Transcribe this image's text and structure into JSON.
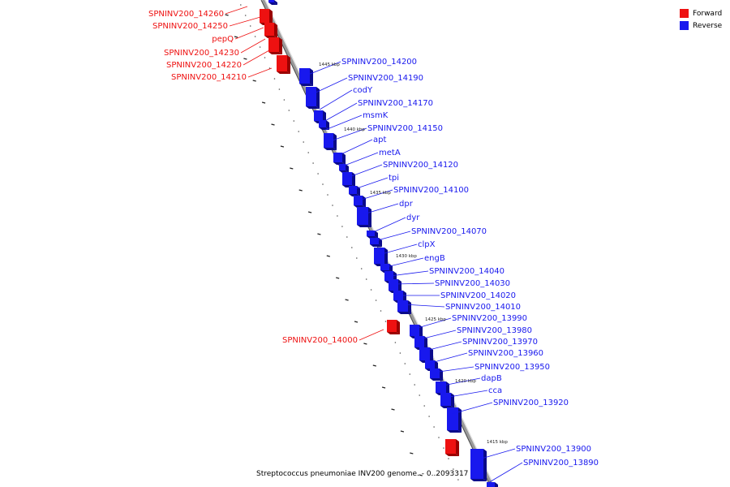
{
  "legend": {
    "forward_label": "Forward",
    "reverse_label": "Reverse",
    "forward_color": "#ee1111",
    "reverse_color": "#1818ee"
  },
  "caption": "Streptococcus pneumoniae INV200 genome. - 0..2093317",
  "ticks": [
    "1445 kbp",
    "1440 kbp",
    "1435 kbp",
    "1430 kbp",
    "1425 kbp",
    "1420 kbp",
    "1415 kbp"
  ],
  "forward_genes": [
    "SPNINV200_14260",
    "SPNINV200_14250",
    "pepQ",
    "SPNINV200_14230",
    "SPNINV200_14220",
    "SPNINV200_14210",
    "SPNINV200_14000"
  ],
  "reverse_genes": [
    "SPNINV200_14200",
    "SPNINV200_14190",
    "codY",
    "SPNINV200_14170",
    "msmK",
    "SPNINV200_14150",
    "apt",
    "metA",
    "SPNINV200_14120",
    "tpi",
    "SPNINV200_14100",
    "dpr",
    "dyr",
    "SPNINV200_14070",
    "clpX",
    "engB",
    "SPNINV200_14040",
    "SPNINV200_14030",
    "SPNINV200_14020",
    "SPNINV200_14010",
    "SPNINV200_13990",
    "SPNINV200_13980",
    "SPNINV200_13970",
    "SPNINV200_13960",
    "SPNINV200_13950",
    "dapB",
    "cca",
    "SPNINV200_13920",
    "SPNINV200_13900",
    "SPNINV200_13890"
  ]
}
